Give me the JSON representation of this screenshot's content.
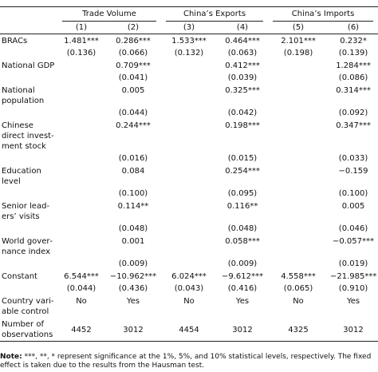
{
  "table": {
    "groups": [
      "Trade Volume",
      "China’s Exports",
      "China’s Imports"
    ],
    "columns": [
      "(1)",
      "(2)",
      "(3)",
      "(4)",
      "(5)",
      "(6)"
    ],
    "rows": [
      {
        "label": "BRACs",
        "coef": [
          "1.481***",
          "0.286***",
          "1.533***",
          "0.464***",
          "2.101***",
          "0.232*"
        ],
        "se": [
          "(0.136)",
          "(0.066)",
          "(0.132)",
          "(0.063)",
          "(0.198)",
          "(0.139)"
        ]
      },
      {
        "label": "National GDP",
        "coef": [
          null,
          "0.709***",
          null,
          "0.412***",
          null,
          "1.284***"
        ],
        "se": [
          null,
          "(0.041)",
          null,
          "(0.039)",
          null,
          "(0.086)"
        ]
      },
      {
        "label": "National population",
        "coef": [
          null,
          "0.005",
          null,
          "0.325***",
          null,
          "0.314***"
        ],
        "se": [
          null,
          "(0.044)",
          null,
          "(0.042)",
          null,
          "(0.092)"
        ]
      },
      {
        "label": "Chinese direct invest­ment stock",
        "coef": [
          null,
          "0.244***",
          null,
          "0.198***",
          null,
          "0.347***"
        ],
        "se": [
          null,
          "(0.016)",
          null,
          "(0.015)",
          null,
          "(0.033)"
        ]
      },
      {
        "label": "Education level",
        "coef": [
          null,
          "0.084",
          null,
          "0.254***",
          null,
          "−0.159"
        ],
        "se": [
          null,
          "(0.100)",
          null,
          "(0.095)",
          null,
          "(0.100)"
        ]
      },
      {
        "label": "Senior lead­ers’ visits",
        "coef": [
          null,
          "0.114**",
          null,
          "0.116**",
          null,
          "0.005"
        ],
        "se": [
          null,
          "(0.048)",
          null,
          "(0.048)",
          null,
          "(0.046)"
        ]
      },
      {
        "label": "World gover­nance index",
        "coef": [
          null,
          "0.001",
          null,
          "0.058***",
          null,
          "−0.057***"
        ],
        "se": [
          null,
          "(0.009)",
          null,
          "(0.009)",
          null,
          "(0.019)"
        ]
      },
      {
        "label": "Constant",
        "coef": [
          "6.544***",
          "−10.962***",
          "6.024***",
          "−9.612***",
          "4.558***",
          "−21.985***"
        ],
        "se": [
          "(0.044)",
          "(0.436)",
          "(0.043)",
          "(0.416)",
          "(0.065)",
          "(0.910)"
        ]
      },
      {
        "label": "Country vari­able control",
        "coef": [
          "No",
          "Yes",
          "No",
          "Yes",
          "No",
          "Yes"
        ]
      },
      {
        "label": "Number of observations",
        "coef": [
          "4452",
          "3012",
          "4454",
          "3012",
          "4325",
          "3012"
        ]
      }
    ]
  },
  "note": {
    "label": "Note:",
    "text": "***, **, * represent significance at the 1%, 5%, and 10% statistical levels, respectively. The fixed effect is taken due to the results from the Hausman test."
  }
}
